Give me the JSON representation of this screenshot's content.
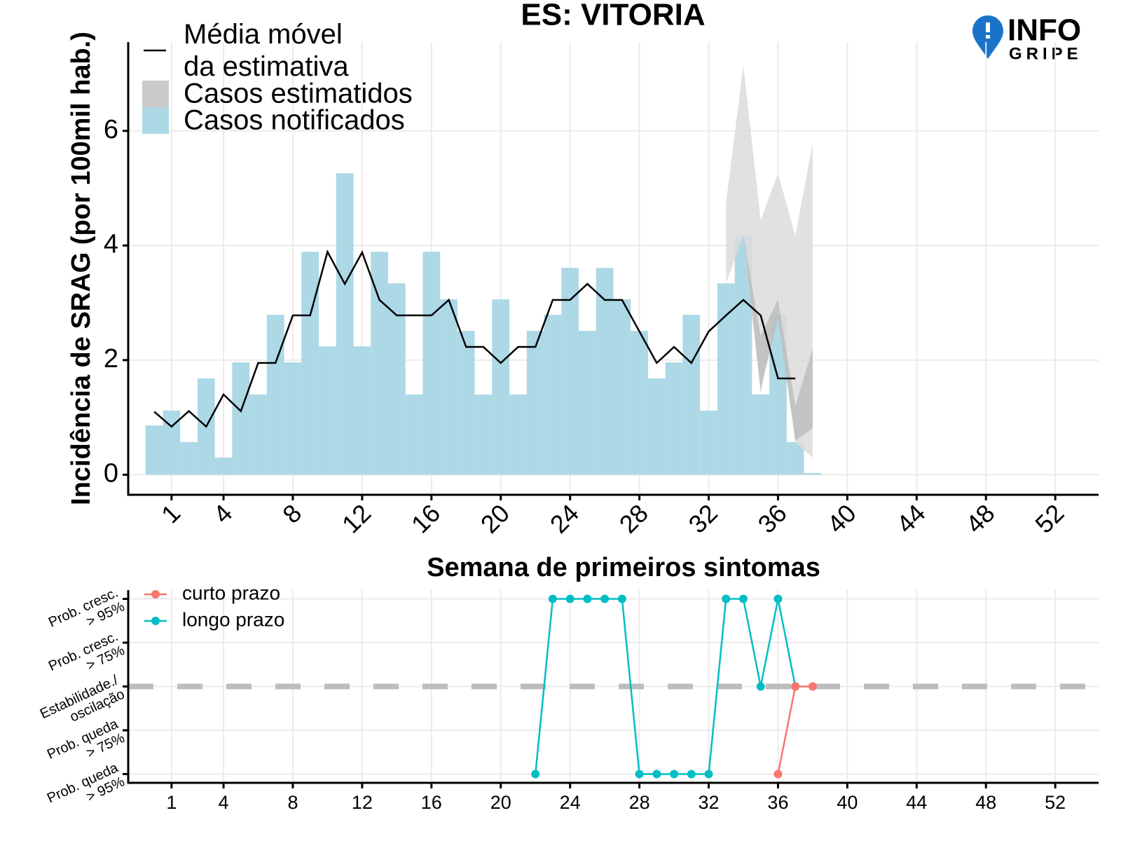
{
  "logo": {
    "line1": "INFO",
    "line2": "GRIPE"
  },
  "chart_data": [
    {
      "type": "bar",
      "title": "ES: VITORIA",
      "xlabel": "Semana de primeiros sintomas",
      "ylabel": "Incidência de SRAG (por 100mil hab.)",
      "xlim": [
        -1.5,
        54.5
      ],
      "xticks": [
        1,
        4,
        8,
        12,
        16,
        20,
        24,
        28,
        32,
        36,
        40,
        44,
        48,
        52
      ],
      "ylim": [
        -0.35,
        7.55
      ],
      "yticks": [
        0,
        2,
        4,
        6
      ],
      "grid": true,
      "series": [
        {
          "name": "Casos notificados",
          "type": "bar",
          "color": "#add8e6",
          "x": [
            0,
            1,
            2,
            3,
            4,
            5,
            6,
            7,
            8,
            9,
            10,
            11,
            12,
            13,
            14,
            15,
            16,
            17,
            18,
            19,
            20,
            21,
            22,
            23,
            24,
            25,
            26,
            27,
            28,
            29,
            30,
            31,
            32,
            33,
            34,
            35,
            36,
            37,
            38
          ],
          "values": [
            0.86,
            1.12,
            0.57,
            1.68,
            0.3,
            1.96,
            1.4,
            2.79,
            1.96,
            3.89,
            2.24,
            5.26,
            2.24,
            3.89,
            3.34,
            1.4,
            3.89,
            3.06,
            2.51,
            1.4,
            3.06,
            1.4,
            2.51,
            2.79,
            3.61,
            2.51,
            3.61,
            3.06,
            2.51,
            1.68,
            1.96,
            2.79,
            1.12,
            3.34,
            4.17,
            1.4,
            2.79,
            0.57,
            0.03
          ]
        },
        {
          "name": "Casos estimatidos",
          "type": "band",
          "color": "#dcdcdc",
          "inner_color": "#bdbdbd",
          "x": [
            33,
            34,
            35,
            36,
            37,
            38
          ],
          "lower": [
            3.34,
            4.17,
            1.4,
            3.04,
            0.56,
            0.3
          ],
          "upper": [
            4.75,
            7.14,
            4.44,
            5.26,
            4.17,
            5.79
          ],
          "inner_lower": [
            3.34,
            4.17,
            1.5,
            2.73,
            0.59,
            0.81
          ],
          "inner_upper": [
            3.34,
            4.17,
            2.42,
            3.06,
            1.2,
            2.2
          ]
        },
        {
          "name": "Média móvel da estimativa",
          "type": "line",
          "color": "#000000",
          "x": [
            0,
            1,
            2,
            3,
            4,
            5,
            6,
            7,
            8,
            9,
            10,
            11,
            12,
            13,
            14,
            15,
            16,
            17,
            18,
            19,
            20,
            21,
            22,
            23,
            24,
            25,
            26,
            27,
            28,
            29,
            30,
            31,
            32,
            33,
            34,
            35,
            36,
            37
          ],
          "values": [
            1.1,
            0.84,
            1.11,
            0.84,
            1.4,
            1.11,
            1.95,
            1.95,
            2.78,
            2.78,
            3.89,
            3.33,
            3.88,
            3.05,
            2.78,
            2.78,
            2.78,
            3.05,
            2.23,
            2.23,
            1.95,
            2.23,
            2.23,
            3.05,
            3.05,
            3.33,
            3.05,
            3.05,
            2.5,
            1.95,
            2.23,
            1.95,
            2.5,
            2.78,
            3.05,
            2.78,
            1.68,
            1.68
          ]
        }
      ]
    },
    {
      "type": "line",
      "xlim": [
        -1.5,
        54.5
      ],
      "xticks": [
        1,
        4,
        8,
        12,
        16,
        20,
        24,
        28,
        32,
        36,
        40,
        44,
        48,
        52
      ],
      "ylim": [
        -2.2,
        2.2
      ],
      "yticks": [
        {
          "value": 2,
          "label": [
            "Prob. cresc.",
            "> 95%"
          ]
        },
        {
          "value": 1,
          "label": [
            "Prob. cresc.",
            "> 75%"
          ]
        },
        {
          "value": 0,
          "label": [
            "Estabilidade./",
            "oscilação"
          ]
        },
        {
          "value": -1,
          "label": [
            "Prob. queda",
            "> 75%"
          ]
        },
        {
          "value": -2,
          "label": [
            "Prob. queda",
            "> 95%"
          ]
        }
      ],
      "grid": true,
      "reference_line": 0,
      "series": [
        {
          "name": "curto prazo",
          "color": "#f8766d",
          "x": [
            36,
            37,
            38
          ],
          "values": [
            -2,
            0,
            0
          ]
        },
        {
          "name": "longo prazo",
          "color": "#00bfc4",
          "x": [
            22,
            23,
            24,
            25,
            26,
            27,
            28,
            29,
            30,
            31,
            32,
            33,
            34,
            35,
            36,
            37
          ],
          "values": [
            -2,
            2,
            2,
            2,
            2,
            2,
            -2,
            -2,
            -2,
            -2,
            -2,
            2,
            2,
            0,
            2,
            0
          ]
        }
      ]
    }
  ]
}
